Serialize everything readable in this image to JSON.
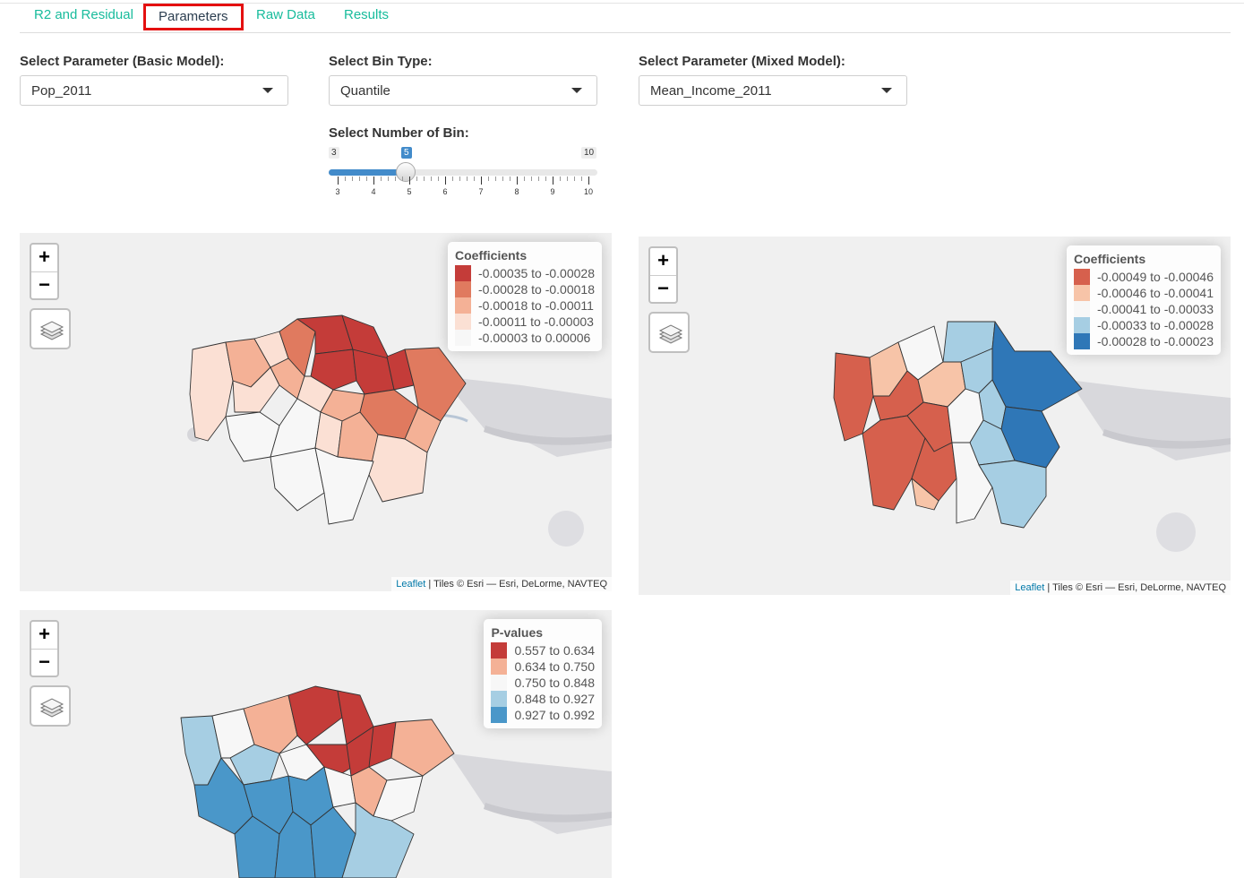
{
  "tabs": [
    {
      "label": "R2 and Residual",
      "active": false
    },
    {
      "label": "Parameters",
      "active": true
    },
    {
      "label": "Raw Data",
      "active": false
    },
    {
      "label": "Results",
      "active": false
    }
  ],
  "controls": {
    "basic_param": {
      "label": "Select Parameter (Basic Model):",
      "value": "Pop_2011"
    },
    "bin_type": {
      "label": "Select Bin Type:",
      "value": "Quantile"
    },
    "mixed_param": {
      "label": "Select Parameter (Mixed Model):",
      "value": "Mean_Income_2011"
    },
    "bins": {
      "label": "Select Number of Bin:",
      "min": 3,
      "max": 10,
      "value": 5,
      "min_label": "3",
      "max_label": "10",
      "value_label": "5",
      "tick_labels": [
        "3",
        "4",
        "5",
        "6",
        "7",
        "8",
        "9",
        "10"
      ]
    }
  },
  "map_ui": {
    "zoom_in": "+",
    "zoom_out": "−",
    "layers_icon": "layers-icon",
    "attribution_link": "Leaflet",
    "attribution_text": " | Tiles © Esri — Esri, DeLorme, NAVTEQ"
  },
  "maps": {
    "basic_coef": {
      "legend_title": "Coefficients",
      "legend": [
        {
          "color": "#c43c39",
          "label": "-0.00035 to -0.00028"
        },
        {
          "color": "#e07a5f",
          "label": "-0.00028 to -0.00018"
        },
        {
          "color": "#f4b196",
          "label": "-0.00018 to -0.00011"
        },
        {
          "color": "#fbe0d4",
          "label": "-0.00011 to -0.00003"
        },
        {
          "color": "#f7f7f7",
          "label": "-0.00003 to 0.00006"
        }
      ]
    },
    "mixed_coef": {
      "legend_title": "Coefficients",
      "legend": [
        {
          "color": "#d6604d",
          "label": "-0.00049 to -0.00046"
        },
        {
          "color": "#f7c4a8",
          "label": "-0.00046 to -0.00041"
        },
        {
          "color": "#f7f7f7",
          "label": "-0.00041 to -0.00033"
        },
        {
          "color": "#a6cee3",
          "label": "-0.00033 to -0.00028"
        },
        {
          "color": "#2f77b7",
          "label": "-0.00028 to -0.00023"
        }
      ]
    },
    "pvalues": {
      "legend_title": "P-values",
      "legend": [
        {
          "color": "#c43c39",
          "label": "0.557 to 0.634"
        },
        {
          "color": "#f4b196",
          "label": "0.634 to 0.750"
        },
        {
          "color": "#f7f7f7",
          "label": "0.750 to 0.848"
        },
        {
          "color": "#a6cee3",
          "label": "0.848 to 0.927"
        },
        {
          "color": "#4a97c9",
          "label": "0.927 to 0.992"
        }
      ]
    }
  }
}
